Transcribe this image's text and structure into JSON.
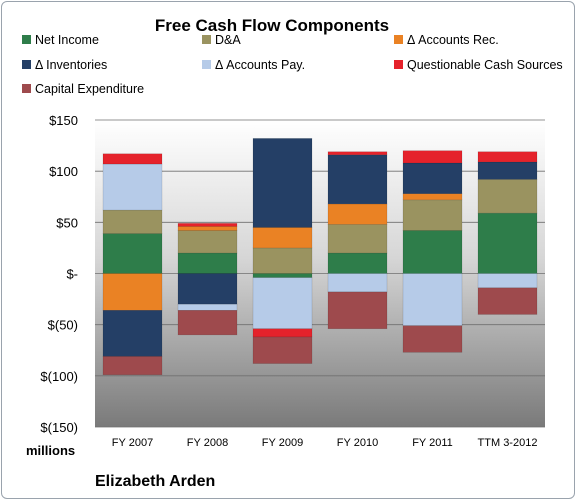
{
  "chart_data": {
    "type": "bar",
    "stacked": true,
    "title": "Free Cash Flow Components",
    "y_unit_label": "millions",
    "company": "Elizabeth Arden",
    "ylim": [
      -150,
      150
    ],
    "y_ticks": [
      150,
      100,
      50,
      0,
      -50,
      -100,
      -150
    ],
    "y_tick_labels": [
      "$150",
      "$100",
      "$50",
      "$-",
      "$(50)",
      "$(100)",
      "$(150)"
    ],
    "grid": true,
    "legend_position": "top",
    "categories": [
      "FY 2007",
      "FY 2008",
      "FY 2009",
      "FY 2010",
      "FY 2011",
      "TTM 3-2012"
    ],
    "series": [
      {
        "name": "Net Income",
        "color": "#2e7d4a",
        "values": [
          39,
          20,
          -4,
          20,
          42,
          59
        ]
      },
      {
        "name": "D&A",
        "color": "#9a9360",
        "values": [
          23,
          22,
          25,
          28,
          30,
          33
        ]
      },
      {
        "name": "Δ Accounts Rec.",
        "color": "#ea8224",
        "values": [
          -36,
          4,
          20,
          20,
          6,
          0
        ]
      },
      {
        "name": "Δ Inventories",
        "color": "#243f66",
        "values": [
          -45,
          -30,
          87,
          48,
          30,
          17
        ]
      },
      {
        "name": "Δ Accounts Pay.",
        "color": "#b6cbe8",
        "values": [
          45,
          -6,
          -50,
          -18,
          -51,
          -14
        ]
      },
      {
        "name": "Questionable Cash Sources",
        "color": "#e5222b",
        "values": [
          10,
          3,
          -8,
          3,
          12,
          10
        ]
      },
      {
        "name": "Capital Expenditure",
        "color": "#9e4a4d",
        "values": [
          -18,
          -24,
          -26,
          -36,
          -26,
          -26
        ]
      }
    ]
  }
}
